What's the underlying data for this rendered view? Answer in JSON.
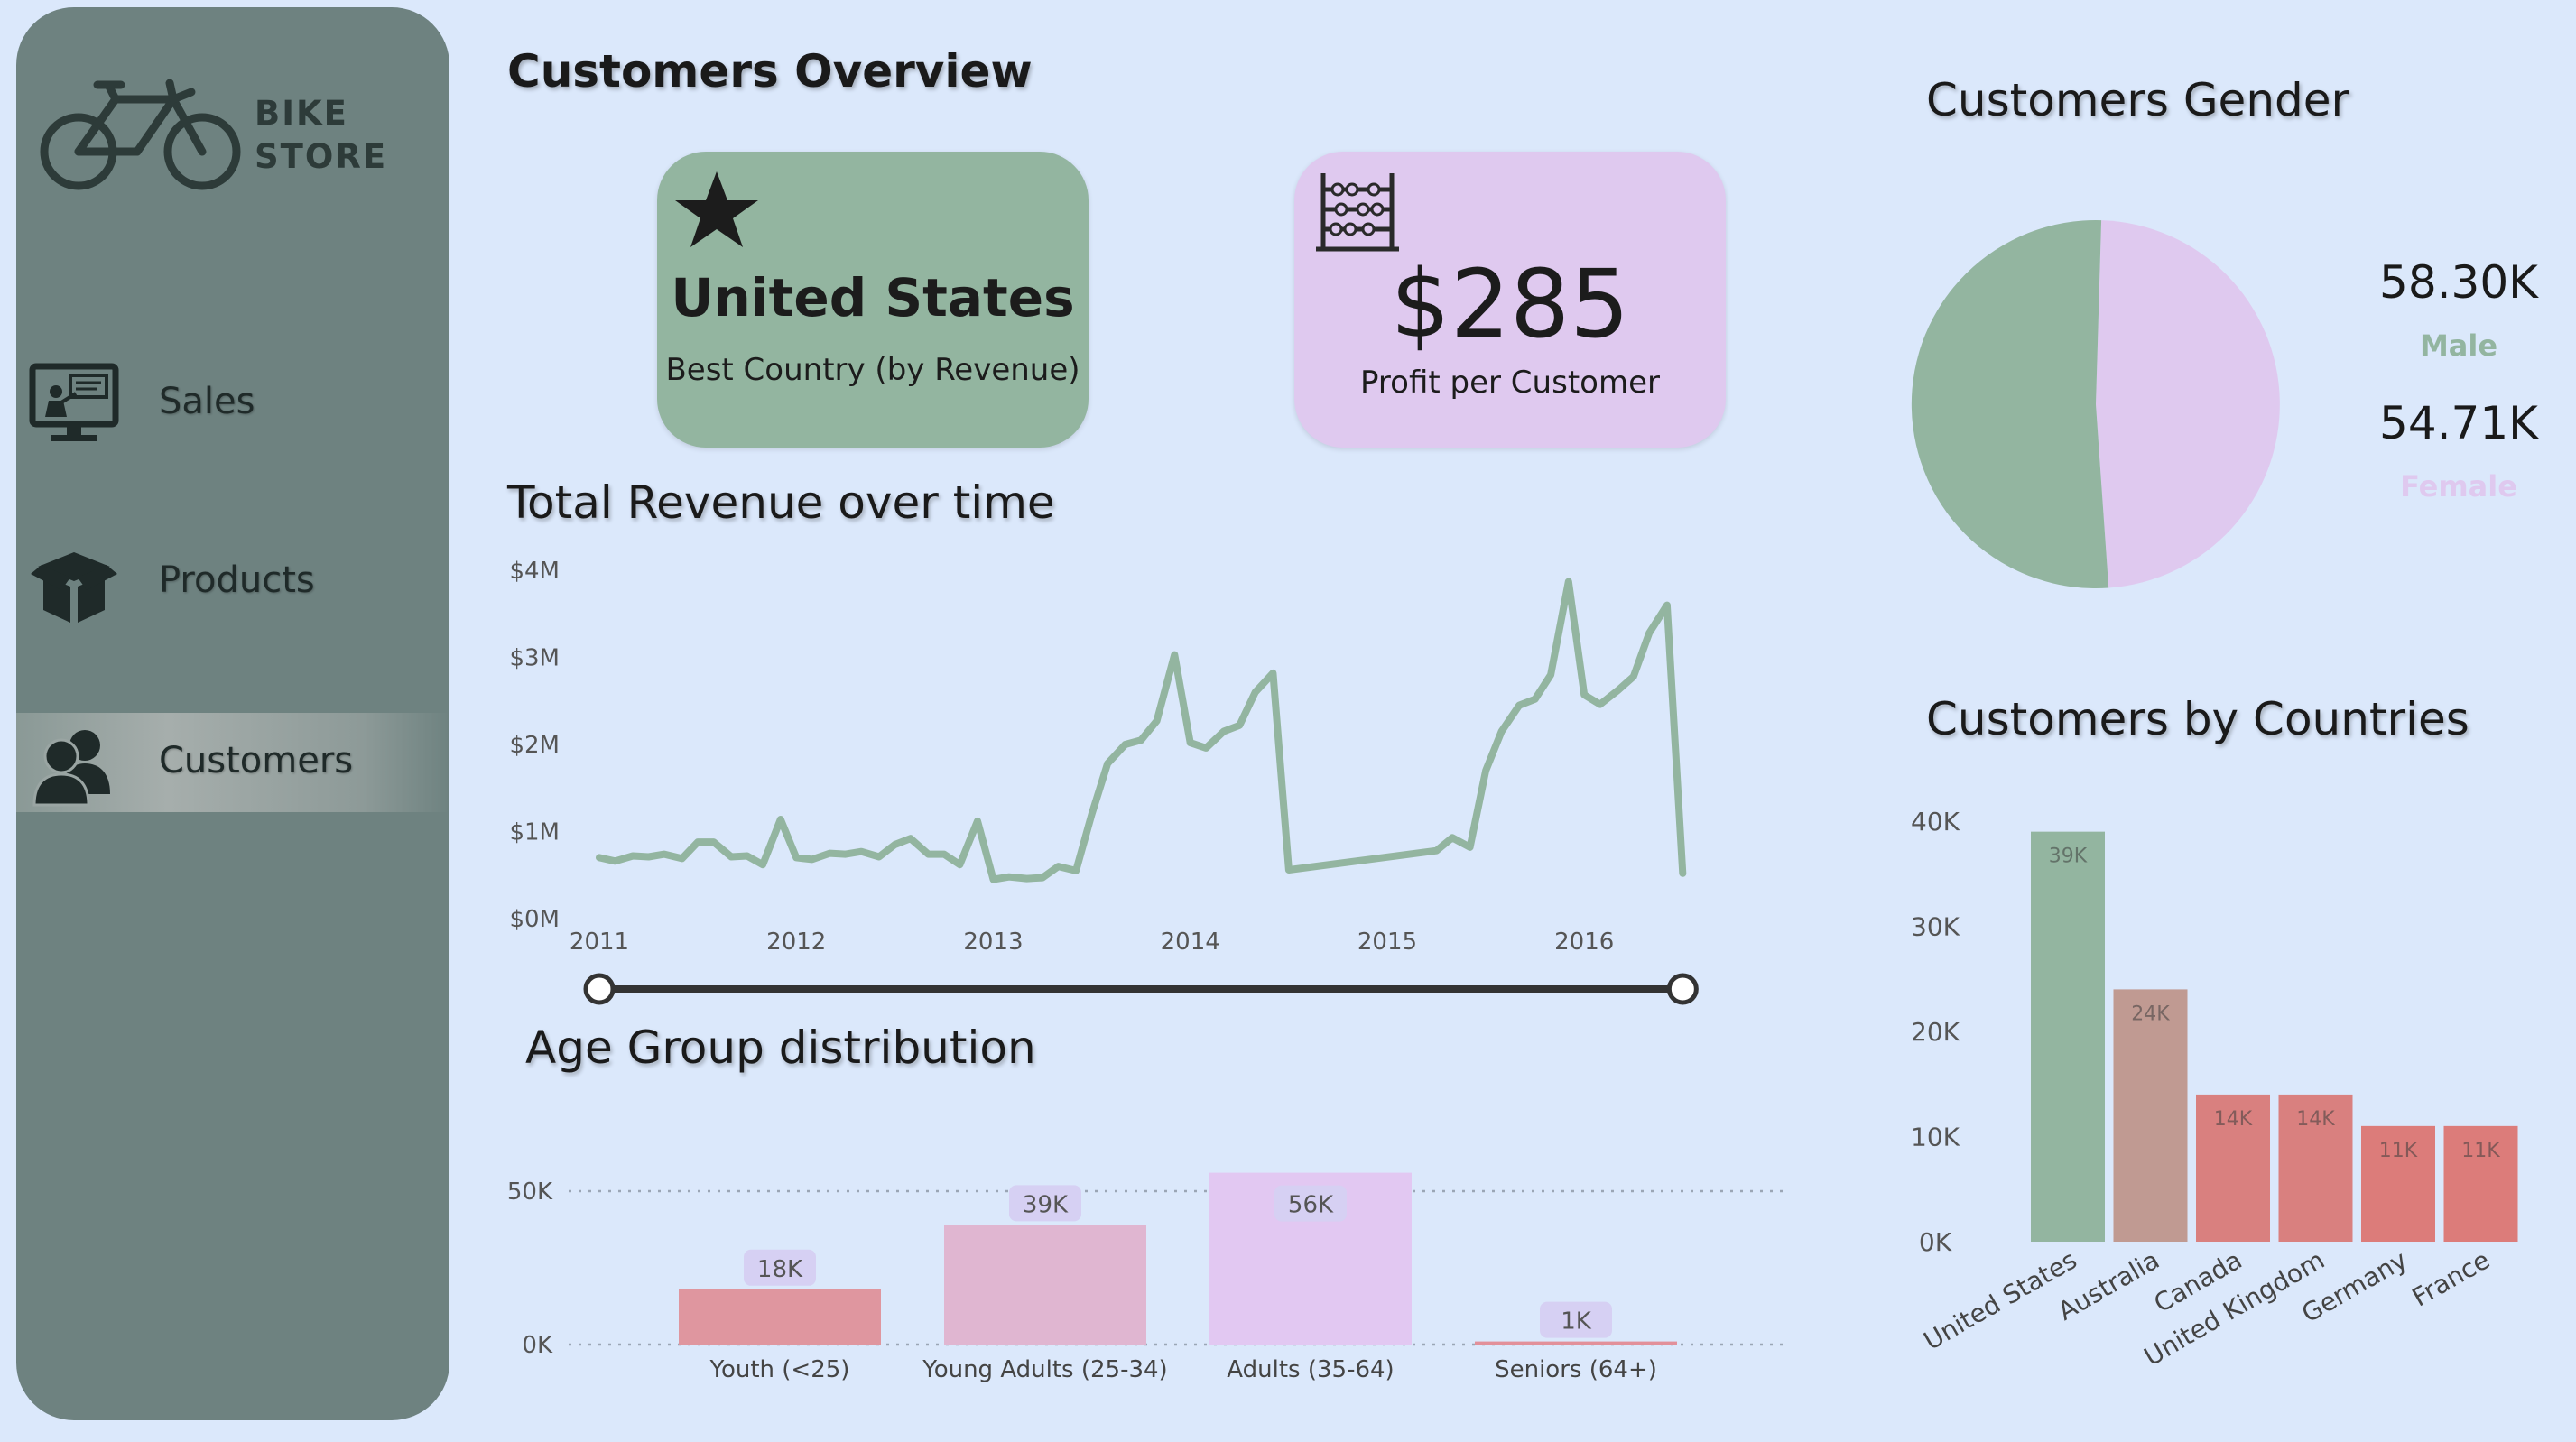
{
  "sidebar": {
    "brand_line1": "BIKE",
    "brand_line2": "STORE",
    "items": [
      {
        "label": "Sales",
        "icon": "monitor-presentation-icon"
      },
      {
        "label": "Products",
        "icon": "box-icon"
      },
      {
        "label": "Customers",
        "icon": "users-icon",
        "active": true
      }
    ]
  },
  "page_title": "Customers Overview",
  "kpi": {
    "best_country": {
      "value": "United States",
      "caption": "Best Country (by Revenue)",
      "icon": "star-icon",
      "color": "#93b5a0"
    },
    "profit": {
      "value": "$285",
      "caption": "Profit per Customer",
      "icon": "abacus-icon",
      "color": "#dfc9ef"
    }
  },
  "revenue_chart": {
    "title": "Total Revenue over time"
  },
  "age_chart": {
    "title": "Age Group distribution"
  },
  "gender_chart": {
    "title": "Customers Gender",
    "male": {
      "value": "58.30K",
      "label": "Male",
      "color": "#93b5a0"
    },
    "female": {
      "value": "54.71K",
      "label": "Female",
      "color": "#dfc9ef"
    }
  },
  "countries_chart": {
    "title": "Customers by Countries"
  },
  "chart_data": [
    {
      "type": "line",
      "title": "Total Revenue over time",
      "x_ticks": [
        "2011",
        "2012",
        "2013",
        "2014",
        "2015",
        "2016"
      ],
      "y_ticks": [
        "$0M",
        "$1M",
        "$2M",
        "$3M",
        "$4M"
      ],
      "ylim": [
        0,
        4
      ],
      "xlim": [
        2011.0,
        2016.92
      ],
      "series": [
        {
          "color": "#93b5a0",
          "points": [
            [
              2011.0,
              0.7
            ],
            [
              2011.08,
              0.66
            ],
            [
              2011.17,
              0.72
            ],
            [
              2011.25,
              0.71
            ],
            [
              2011.33,
              0.74
            ],
            [
              2011.42,
              0.69
            ],
            [
              2011.5,
              0.88
            ],
            [
              2011.58,
              0.88
            ],
            [
              2011.67,
              0.71
            ],
            [
              2011.75,
              0.72
            ],
            [
              2011.83,
              0.62
            ],
            [
              2011.92,
              1.14
            ],
            [
              2012.0,
              0.7
            ],
            [
              2012.08,
              0.68
            ],
            [
              2012.17,
              0.75
            ],
            [
              2012.25,
              0.74
            ],
            [
              2012.33,
              0.77
            ],
            [
              2012.42,
              0.71
            ],
            [
              2012.5,
              0.85
            ],
            [
              2012.58,
              0.92
            ],
            [
              2012.67,
              0.74
            ],
            [
              2012.75,
              0.74
            ],
            [
              2012.83,
              0.62
            ],
            [
              2012.92,
              1.12
            ],
            [
              2013.0,
              0.45
            ],
            [
              2013.08,
              0.48
            ],
            [
              2013.17,
              0.46
            ],
            [
              2013.25,
              0.47
            ],
            [
              2013.33,
              0.6
            ],
            [
              2013.42,
              0.55
            ],
            [
              2013.5,
              1.2
            ],
            [
              2013.58,
              1.78
            ],
            [
              2013.67,
              2.0
            ],
            [
              2013.75,
              2.05
            ],
            [
              2013.83,
              2.27
            ],
            [
              2013.92,
              3.03
            ],
            [
              2014.0,
              2.02
            ],
            [
              2014.08,
              1.96
            ],
            [
              2014.17,
              2.15
            ],
            [
              2014.25,
              2.22
            ],
            [
              2014.33,
              2.6
            ],
            [
              2014.42,
              2.82
            ],
            [
              2014.5,
              0.56
            ],
            [
              2015.25,
              0.78
            ],
            [
              2015.33,
              0.93
            ],
            [
              2015.42,
              0.82
            ],
            [
              2015.5,
              1.7
            ],
            [
              2015.58,
              2.15
            ],
            [
              2015.67,
              2.45
            ],
            [
              2015.75,
              2.52
            ],
            [
              2015.83,
              2.8
            ],
            [
              2015.92,
              3.87
            ],
            [
              2016.0,
              2.57
            ],
            [
              2016.08,
              2.46
            ],
            [
              2016.17,
              2.62
            ],
            [
              2016.25,
              2.78
            ],
            [
              2016.33,
              3.28
            ],
            [
              2016.42,
              3.6
            ],
            [
              2016.5,
              0.52
            ]
          ]
        }
      ],
      "range_slider": {
        "start": 2011.0,
        "end": 2016.5
      }
    },
    {
      "type": "bar",
      "title": "Age Group distribution",
      "categories": [
        "Youth (<25)",
        "Young Adults (25-34)",
        "Adults (35-64)",
        "Seniors (64+)"
      ],
      "values": [
        18,
        39,
        56,
        1
      ],
      "labels": [
        "18K",
        "39K",
        "56K",
        "1K"
      ],
      "colors": [
        "#df969f",
        "#e0b6d1",
        "#e2c8f2",
        "#e2909a"
      ],
      "y_ticks": [
        {
          "value": 0,
          "label": "0K"
        },
        {
          "value": 50,
          "label": "50K"
        }
      ],
      "ylim": [
        0,
        56
      ],
      "grid": true
    },
    {
      "type": "pie",
      "title": "Customers Gender",
      "slices": [
        {
          "label": "Male",
          "value": 58.3,
          "color": "#93b5a0"
        },
        {
          "label": "Female",
          "value": 54.71,
          "color": "#dfc9ef"
        }
      ]
    },
    {
      "type": "bar",
      "title": "Customers by Countries",
      "categories": [
        "United States",
        "Australia",
        "Canada",
        "United Kingdom",
        "Germany",
        "France"
      ],
      "values": [
        39,
        24,
        14,
        14,
        11,
        11
      ],
      "labels": [
        "39K",
        "24K",
        "14K",
        "14K",
        "11K",
        "11K"
      ],
      "colors": [
        "#93b5a0",
        "#c09a92",
        "#d9807f",
        "#d9807f",
        "#dc7c7a",
        "#dc7c7a"
      ],
      "y_ticks": [
        {
          "value": 0,
          "label": "0K"
        },
        {
          "value": 10,
          "label": "10K"
        },
        {
          "value": 20,
          "label": "20K"
        },
        {
          "value": 30,
          "label": "30K"
        },
        {
          "value": 40,
          "label": "40K"
        }
      ],
      "ylim": [
        0,
        40
      ]
    }
  ]
}
